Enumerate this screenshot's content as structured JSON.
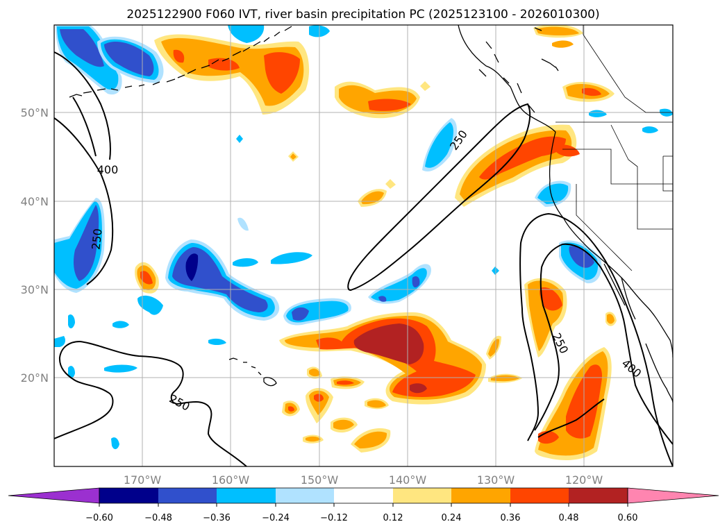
{
  "title": "2025122900 F060 IVT, river basin precipitation PC (2025123100 - 2026010300)",
  "map": {
    "lat_labels": [
      "50°N",
      "40°N",
      "30°N",
      "20°N"
    ],
    "lon_labels": [
      "170°W",
      "160°W",
      "150°W",
      "140°W",
      "130°W",
      "120°W"
    ],
    "contour_labels": [
      "400",
      "250",
      "250",
      "250",
      "250",
      "400"
    ]
  },
  "colorbar": {
    "labels": [
      "−0.60",
      "−0.48",
      "−0.36",
      "−0.24",
      "−0.12",
      "0.12",
      "0.24",
      "0.36",
      "0.48",
      "0.60"
    ],
    "colors": [
      "#9b30d0",
      "#00008b",
      "#3050cc",
      "#00bfff",
      "#b0e2ff",
      "#ffffff",
      "#ffe680",
      "#ffa500",
      "#ff4500",
      "#b22222",
      "#ff85b0"
    ]
  }
}
